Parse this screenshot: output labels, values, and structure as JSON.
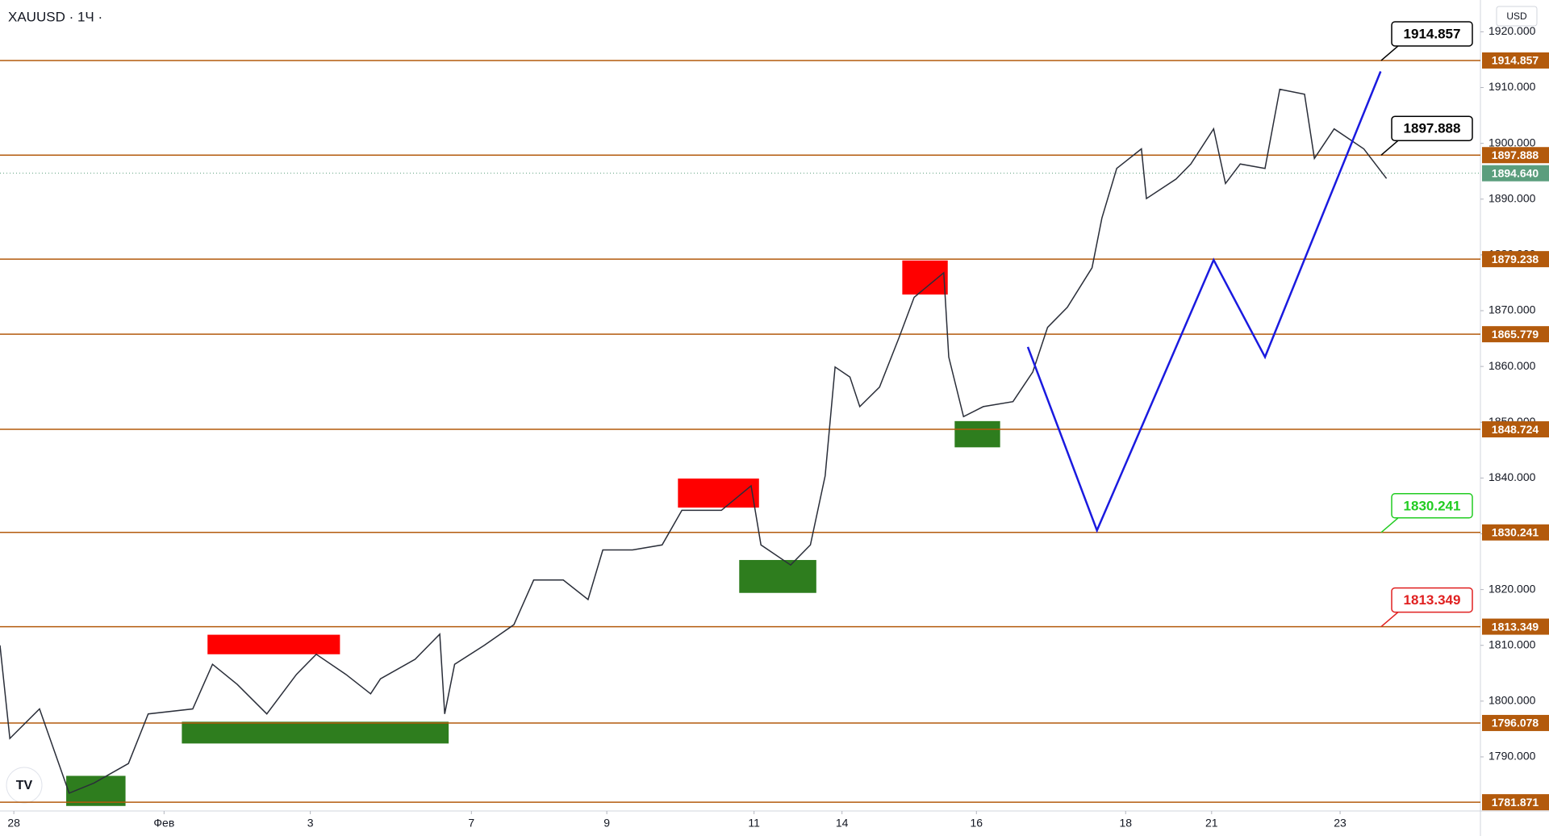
{
  "chart_data": {
    "type": "line",
    "title": "XAUUSD · 1Ч ·",
    "currency": "USD",
    "xlim": [
      0,
      149.8
    ],
    "xticks": [
      {
        "value": 1.4,
        "label": "28"
      },
      {
        "value": 16.6,
        "label": "Фев"
      },
      {
        "value": 31.4,
        "label": "3"
      },
      {
        "value": 47.7,
        "label": "7"
      },
      {
        "value": 61.4,
        "label": "9"
      },
      {
        "value": 76.3,
        "label": "11"
      },
      {
        "value": 85.2,
        "label": "14"
      },
      {
        "value": 98.8,
        "label": "16"
      },
      {
        "value": 113.9,
        "label": "18"
      },
      {
        "value": 122.6,
        "label": "21"
      },
      {
        "value": 135.6,
        "label": "23"
      }
    ],
    "ylim": [
      1780.3,
      1925.7
    ],
    "yticks": [
      {
        "value": 1790,
        "label": "1790.000"
      },
      {
        "value": 1800,
        "label": "1800.000"
      },
      {
        "value": 1810,
        "label": "1810.000"
      },
      {
        "value": 1820,
        "label": "1820.000"
      },
      {
        "value": 1830,
        "label": "1830.000"
      },
      {
        "value": 1840,
        "label": "1840.000"
      },
      {
        "value": 1850,
        "label": "1850.000"
      },
      {
        "value": 1860,
        "label": "1860.000"
      },
      {
        "value": 1870,
        "label": "1870.000"
      },
      {
        "value": 1880,
        "label": "1880.000"
      },
      {
        "value": 1890,
        "label": "1890.000"
      },
      {
        "value": 1900,
        "label": "1900.000"
      },
      {
        "value": 1910,
        "label": "1910.000"
      },
      {
        "value": 1920,
        "label": "1920.000"
      }
    ],
    "series": [
      {
        "color": "#2a2e39",
        "x": [
          0,
          1,
          4,
          7,
          9.5,
          13,
          15,
          19.5,
          21.5,
          24,
          27,
          30,
          32,
          35,
          37.5,
          38.5,
          42,
          44.5,
          45,
          46,
          49,
          52,
          54,
          57,
          59.5,
          61,
          64,
          67,
          69,
          73,
          76,
          77,
          80,
          82,
          83.5,
          84.5,
          86,
          87,
          89,
          91,
          92.5,
          95.5,
          96,
          97.5,
          99.5,
          102.5,
          104.5,
          106,
          108,
          110.5,
          111.5,
          113,
          115.5,
          116,
          119,
          120.5,
          122.8,
          124,
          125.5,
          128,
          129.5,
          132,
          133,
          135,
          138,
          140.3
        ],
        "values": [
          1810,
          1793.3,
          1798.6,
          1783.5,
          1785.3,
          1788.8,
          1797.7,
          1798.6,
          1806.6,
          1803,
          1797.7,
          1804.8,
          1808.4,
          1804.8,
          1801.3,
          1804,
          1807.5,
          1812,
          1797.7,
          1806.6,
          1810,
          1813.7,
          1821.7,
          1821.7,
          1818.2,
          1827.1,
          1827.1,
          1828,
          1834.2,
          1834.2,
          1838.6,
          1828,
          1824.4,
          1828,
          1840.4,
          1859.9,
          1858.1,
          1852.8,
          1856.3,
          1865.3,
          1872.4,
          1876.8,
          1861.7,
          1851,
          1852.8,
          1853.7,
          1859,
          1867,
          1870.6,
          1877.7,
          1886.6,
          1895.5,
          1899,
          1890.1,
          1893.6,
          1896.3,
          1902.6,
          1892.8,
          1896.3,
          1895.5,
          1909.7,
          1908.8,
          1897.3,
          1902.6,
          1899,
          1893.7
        ]
      }
    ],
    "levels": [
      1914.857,
      1897.888,
      1879.238,
      1865.779,
      1848.724,
      1830.241,
      1813.349,
      1796.078,
      1781.871
    ],
    "level_color": "#b35a0c",
    "current_price": {
      "value": 1894.64,
      "label": "1894.640",
      "color": "#5b9e7d"
    },
    "callouts": [
      {
        "value": 1914.857,
        "color": "#000000"
      },
      {
        "value": 1897.888,
        "color": "#000000"
      },
      {
        "value": 1830.241,
        "color": "#22cc22"
      },
      {
        "value": 1813.349,
        "color": "#e02020"
      }
    ],
    "zones": [
      {
        "x": [
          21,
          34.4
        ],
        "y": [
          1808.4,
          1811.9
        ],
        "color": "#ff0000"
      },
      {
        "x": [
          18.4,
          45.4
        ],
        "y": [
          1792.4,
          1796.3
        ],
        "color": "#2e7d1e"
      },
      {
        "x": [
          6.7,
          12.7
        ],
        "y": [
          1781.2,
          1786.6
        ],
        "color": "#2e7d1e"
      },
      {
        "x": [
          68.6,
          76.8
        ],
        "y": [
          1834.7,
          1839.9
        ],
        "color": "#ff0000"
      },
      {
        "x": [
          74.8,
          82.6
        ],
        "y": [
          1819.4,
          1825.3
        ],
        "color": "#2e7d1e"
      },
      {
        "x": [
          91.3,
          95.9
        ],
        "y": [
          1872.9,
          1879
        ],
        "color": "#ff0000"
      },
      {
        "x": [
          96.6,
          101.2
        ],
        "y": [
          1845.5,
          1850.2
        ],
        "color": "#2e7d1e"
      }
    ],
    "projection": {
      "color": "#1a1adf",
      "x": [
        104,
        111,
        122.8,
        128,
        139.7
      ],
      "values": [
        1863.5,
        1830.6,
        1879.1,
        1861.7,
        1912.9
      ]
    }
  }
}
